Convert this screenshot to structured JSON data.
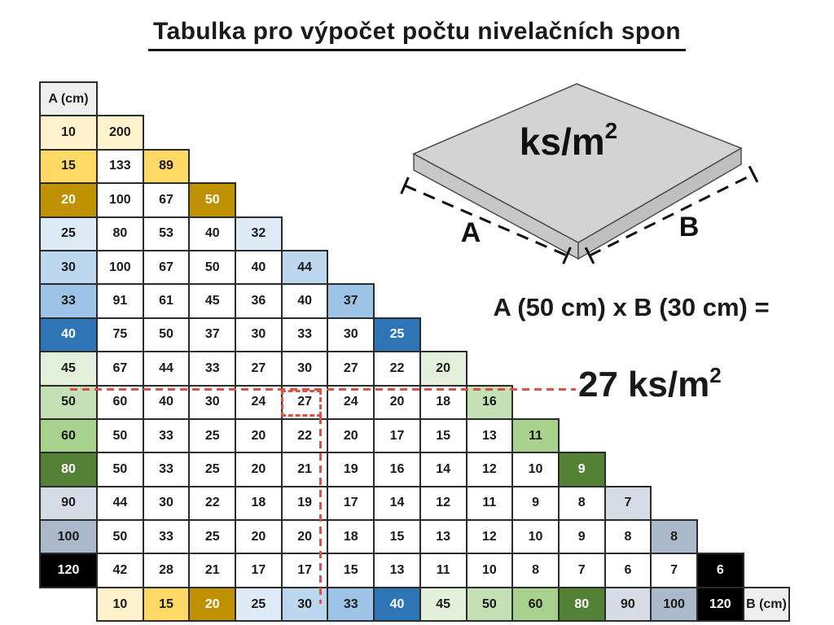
{
  "title": "Tabulka pro výpočet počtu nivelačních spon",
  "table": {
    "corner_label": "A (cm)",
    "b_axis_label": "B (cm)",
    "header_bg": "#EFEFEF",
    "border_color": "#2b2b2b",
    "row_colors": [
      "#FFF2CC",
      "#FFD966",
      "#BF9000",
      "#DEEBF7",
      "#BDD7EE",
      "#9DC3E6",
      "#2E75B6",
      "#E2EFDA",
      "#C5E0B4",
      "#A9D18E",
      "#538135",
      "#D6DCE5",
      "#ACB9CA",
      "#000000"
    ],
    "white_text_rows": [
      2,
      6,
      10,
      13
    ]
  },
  "chart_data": {
    "type": "table",
    "title": "Tabulka pro výpočet počtu nivelačních spon",
    "row_axis_label": "A (cm)",
    "col_axis_label": "B (cm)",
    "unit": "ks/m2",
    "row_values": [
      10,
      15,
      20,
      25,
      30,
      33,
      40,
      45,
      50,
      60,
      80,
      90,
      100,
      120
    ],
    "col_values": [
      10,
      15,
      20,
      25,
      30,
      33,
      40,
      45,
      50,
      60,
      80,
      90,
      100,
      120
    ],
    "matrix": [
      [
        200
      ],
      [
        133,
        89
      ],
      [
        100,
        67,
        50
      ],
      [
        80,
        53,
        40,
        32
      ],
      [
        100,
        67,
        50,
        40,
        44
      ],
      [
        91,
        61,
        45,
        36,
        40,
        37
      ],
      [
        75,
        50,
        37,
        30,
        33,
        30,
        25
      ],
      [
        67,
        44,
        33,
        27,
        30,
        27,
        22,
        20
      ],
      [
        60,
        40,
        30,
        24,
        27,
        24,
        20,
        18,
        16
      ],
      [
        50,
        33,
        25,
        20,
        22,
        20,
        17,
        15,
        13,
        11
      ],
      [
        50,
        33,
        25,
        20,
        21,
        19,
        16,
        14,
        12,
        10,
        9
      ],
      [
        44,
        30,
        22,
        18,
        19,
        17,
        14,
        12,
        11,
        9,
        8,
        7
      ],
      [
        50,
        33,
        25,
        20,
        20,
        18,
        15,
        13,
        12,
        10,
        9,
        8,
        8
      ],
      [
        42,
        28,
        21,
        17,
        17,
        15,
        13,
        11,
        10,
        8,
        7,
        6,
        7,
        6
      ]
    ],
    "highlighted_example": {
      "A": 50,
      "B": 30,
      "value": 27
    }
  },
  "illustration": {
    "unit_base": "ks/m",
    "unit_exp": "2",
    "side_a_label": "A",
    "side_b_label": "B",
    "slab_top_color": "#d3d3d3",
    "slab_side_color": "#c3c3c3"
  },
  "example": {
    "formula": "A (50 cm) x B (30 cm) =",
    "result_value": "27",
    "result_unit_base": "ks/m",
    "result_unit_exp": "2"
  },
  "highlight": {
    "color": "#DD5148"
  }
}
